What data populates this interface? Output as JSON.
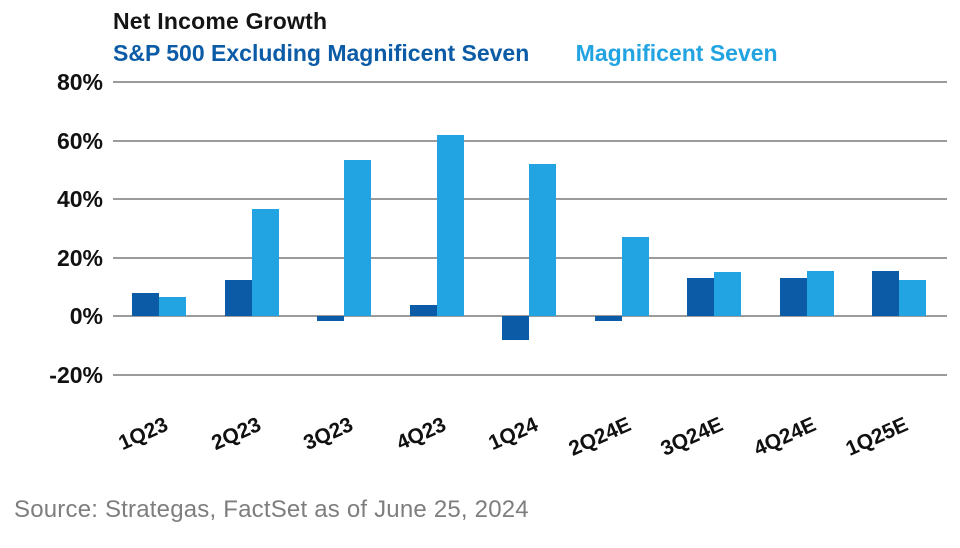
{
  "header": {
    "title": "Net Income Growth"
  },
  "chart_data": {
    "type": "bar",
    "title": "Net Income Growth",
    "categories": [
      "1Q23",
      "2Q23",
      "3Q23",
      "4Q23",
      "1Q24",
      "2Q24E",
      "3Q24E",
      "4Q24E",
      "1Q25E"
    ],
    "series": [
      {
        "name": "S&P 500 Excluding Magnificent Seven",
        "color": "#0b5ba6",
        "values": [
          8,
          12.5,
          -1.5,
          4,
          -8,
          -1.5,
          13,
          13,
          15.5
        ]
      },
      {
        "name": "Magnificent Seven",
        "color": "#21a4e1",
        "values": [
          6.5,
          36.5,
          53.5,
          62,
          52,
          27,
          15,
          15.5,
          12.5
        ]
      }
    ],
    "yticks": [
      80,
      60,
      40,
      20,
      0,
      -20
    ],
    "ytick_labels": [
      "80%",
      "60%",
      "40%",
      "20%",
      "0%",
      "-20%"
    ],
    "ylim": [
      -20,
      80
    ],
    "xlabel": "",
    "ylabel": "",
    "grid": "horizontal",
    "gridline_color": "#9b9b9b",
    "legend_position": "top"
  },
  "footer": {
    "source": "Source: Strategas, FactSet as of June 25, 2024"
  }
}
